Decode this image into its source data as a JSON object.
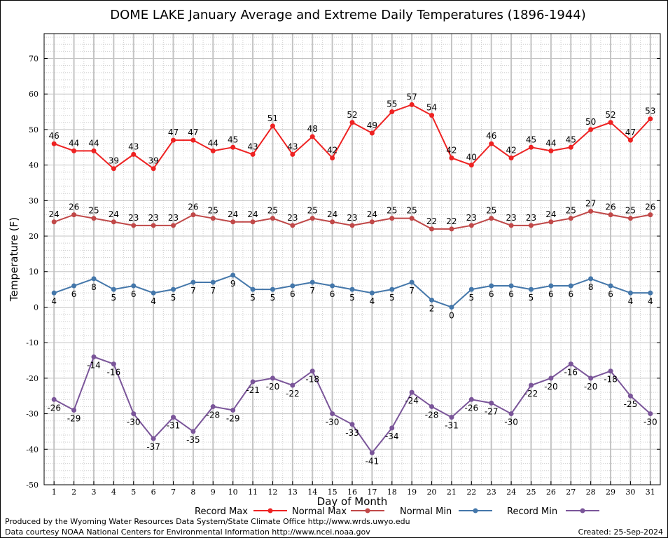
{
  "chart_data": {
    "type": "line",
    "title": "DOME LAKE January Average and Extreme Daily Temperatures (1896-1944)",
    "xlabel": "Day of Month",
    "ylabel": "Temperature (F)",
    "ylim": [
      -50,
      77
    ],
    "yticks": [
      -50,
      -40,
      -30,
      -20,
      -10,
      0,
      10,
      20,
      30,
      40,
      50,
      60,
      70
    ],
    "grid": true,
    "legend_position": "bottom",
    "x": [
      1,
      2,
      3,
      4,
      5,
      6,
      7,
      8,
      9,
      10,
      11,
      12,
      13,
      14,
      15,
      16,
      17,
      18,
      19,
      20,
      21,
      22,
      23,
      24,
      25,
      26,
      27,
      28,
      29,
      30,
      31
    ],
    "series": [
      {
        "name": "Record Max",
        "color": "#ee2222",
        "label_position": "above",
        "values": [
          46,
          44,
          44,
          39,
          43,
          39,
          47,
          47,
          44,
          45,
          43,
          51,
          43,
          48,
          42,
          52,
          49,
          55,
          57,
          54,
          42,
          40,
          46,
          42,
          45,
          44,
          45,
          50,
          52,
          47,
          53
        ]
      },
      {
        "name": "Normal Max",
        "color": "#c04848",
        "label_position": "above",
        "values": [
          24,
          26,
          25,
          24,
          23,
          23,
          23,
          26,
          25,
          24,
          24,
          25,
          23,
          25,
          24,
          23,
          24,
          25,
          25,
          22,
          22,
          23,
          25,
          23,
          23,
          24,
          25,
          27,
          26,
          25,
          26
        ]
      },
      {
        "name": "Normal Min",
        "color": "#4477aa",
        "label_position": "below",
        "values": [
          4,
          6,
          8,
          5,
          6,
          4,
          5,
          7,
          7,
          9,
          5,
          5,
          6,
          7,
          6,
          5,
          4,
          5,
          7,
          2,
          0,
          5,
          6,
          6,
          5,
          6,
          6,
          8,
          6,
          4,
          4
        ]
      },
      {
        "name": "Record Min",
        "color": "#7a5599",
        "label_position": "below",
        "values": [
          -26,
          -29,
          -14,
          -16,
          -30,
          -37,
          -31,
          -35,
          -28,
          -29,
          -21,
          -20,
          -22,
          -18,
          -30,
          -33,
          -41,
          -34,
          -24,
          -28,
          -31,
          -26,
          -27,
          -30,
          -22,
          -20,
          -16,
          -20,
          -18,
          -25,
          -30
        ]
      }
    ]
  },
  "footer": {
    "produced_by": "Produced by the Wyoming Water Resources Data System/State Climate Office http://www.wrds.uwyo.edu",
    "data_courtesy": "Data courtesy NOAA National Centers for Environmental Information http://www.ncei.noaa.gov",
    "created": "Created:  25-Sep-2024"
  }
}
